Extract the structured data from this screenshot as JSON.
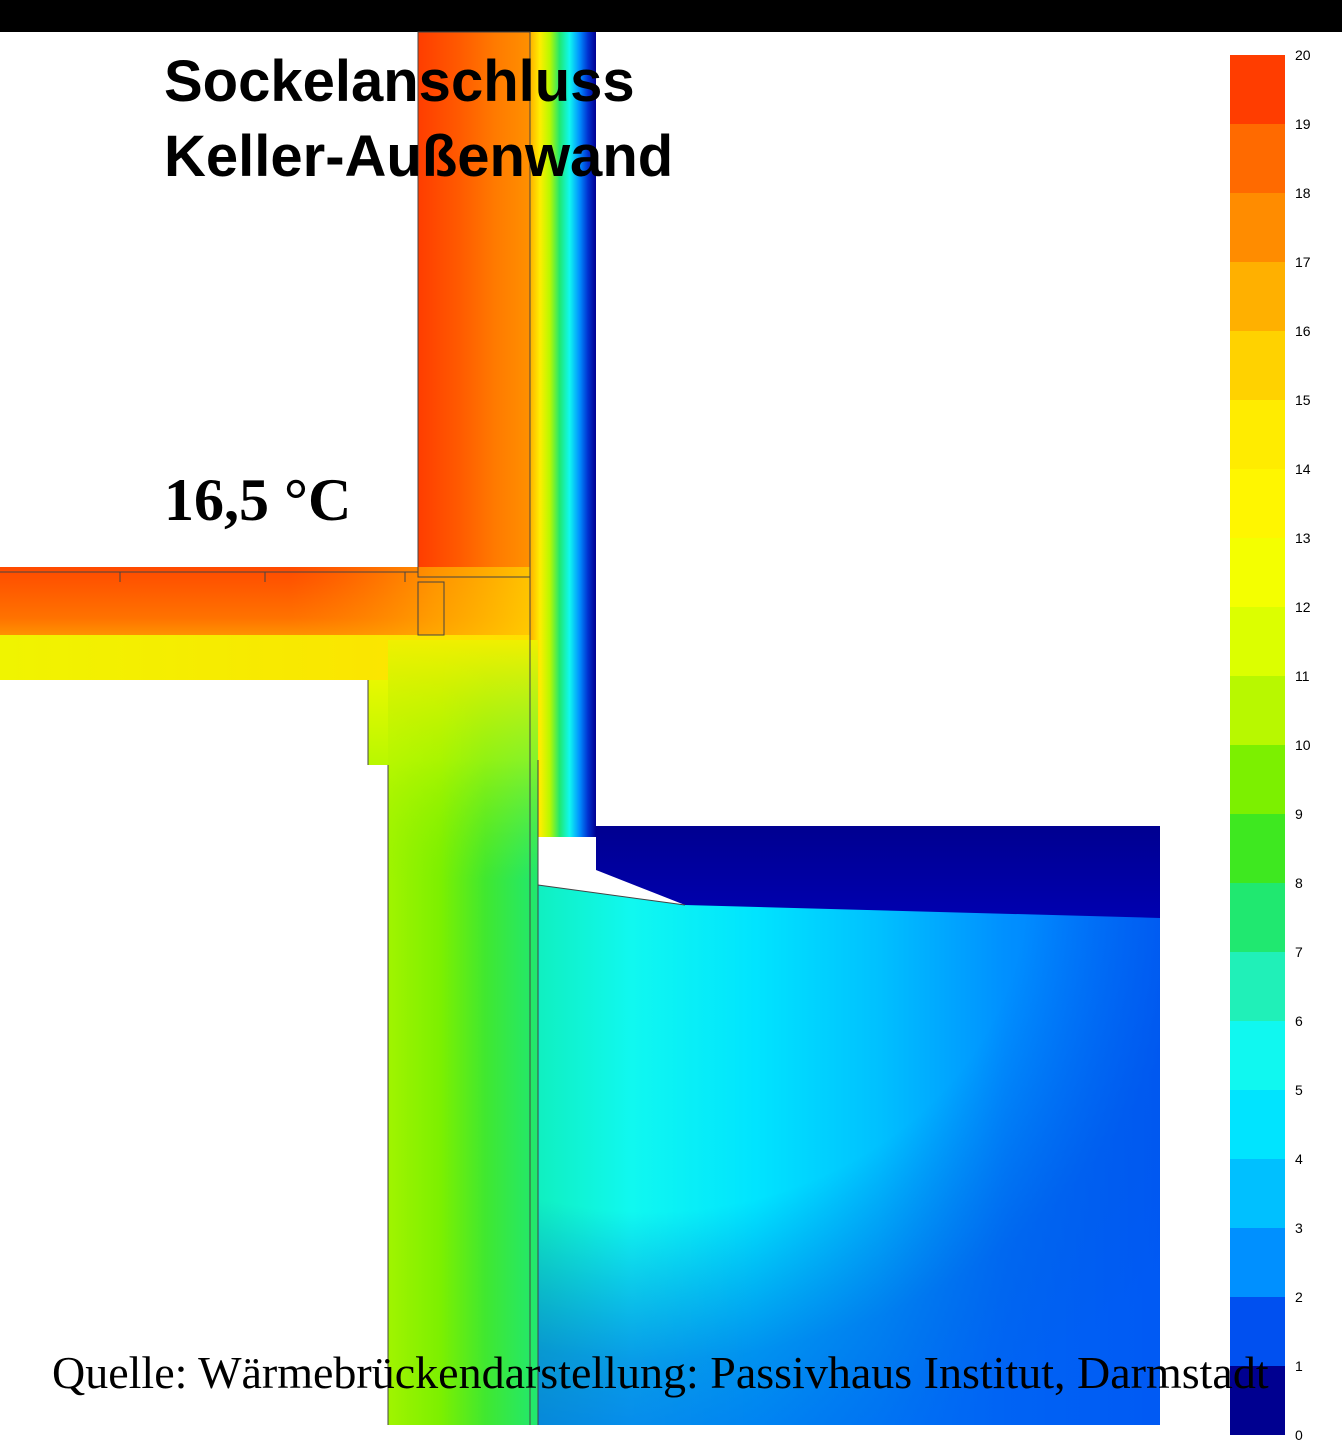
{
  "title": {
    "line1": "Sockelanschluss",
    "line2": "Keller-Außenwand"
  },
  "temperature_label": "16,5 °C",
  "source": "Quelle: Wärmebrückendarstellung: Passivhaus Institut, Darmstadt",
  "legend": {
    "min": 0,
    "max": 20,
    "ticks": [
      "20",
      "19",
      "18",
      "17",
      "16",
      "15",
      "14",
      "13",
      "12",
      "11",
      "10",
      "9",
      "8",
      "7",
      "6",
      "5",
      "4",
      "3",
      "2",
      "1",
      "0"
    ],
    "colors": [
      "#ff3d00",
      "#ff6a00",
      "#ff8c00",
      "#ffb000",
      "#ffd200",
      "#ffec00",
      "#fff600",
      "#f4ff00",
      "#dcff00",
      "#b8f800",
      "#7cf000",
      "#3ee820",
      "#20e870",
      "#20f0b8",
      "#10f8f0",
      "#00e4ff",
      "#00c0ff",
      "#0090ff",
      "#0050f0",
      "#000090"
    ]
  }
}
